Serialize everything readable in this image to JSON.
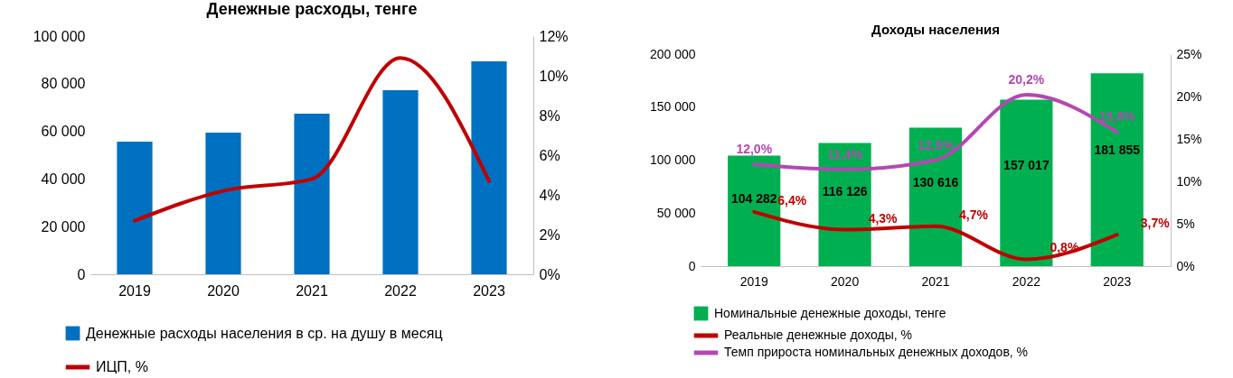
{
  "chart_data": [
    {
      "type": "bar",
      "title": "Денежные расходы, тенге",
      "categories": [
        "2019",
        "2020",
        "2021",
        "2022",
        "2023"
      ],
      "series": [
        {
          "name": "Денежные расходы населения в ср. на душу в месяц",
          "color": "#0070c0",
          "values": [
            55700,
            59500,
            67400,
            77300,
            89400
          ]
        },
        {
          "name": "ИЦП, %",
          "type": "line",
          "axis": "y2",
          "color": "#c00000",
          "values": [
            2.7,
            4.2,
            4.8,
            10.9,
            4.7
          ]
        }
      ],
      "ylim": [
        0,
        100000
      ],
      "yticks": [
        0,
        {
          "value": 20000,
          "label": "20 000"
        },
        {
          "value": 40000,
          "label": "40 000"
        },
        {
          "value": 60000,
          "label": "60 000"
        },
        {
          "value": 80000,
          "label": "80 000"
        },
        {
          "value": 100000,
          "label": "100 000"
        }
      ],
      "y2lim": [
        0,
        12
      ],
      "y2ticks": [
        {
          "value": 0,
          "label": "0%"
        },
        {
          "value": 2,
          "label": "2%"
        },
        {
          "value": 4,
          "label": "4%"
        },
        {
          "value": 6,
          "label": "6%"
        },
        {
          "value": 8,
          "label": "8%"
        },
        {
          "value": 10,
          "label": "10%"
        },
        {
          "value": 12,
          "label": "12%"
        }
      ],
      "legend": "bottom"
    },
    {
      "type": "bar",
      "title": "Доходы населения",
      "categories": [
        "2019",
        "2020",
        "2021",
        "2022",
        "2023"
      ],
      "series": [
        {
          "name": "Номинальные денежные доходы, тенге",
          "color": "#00b050",
          "values": [
            104282,
            116126,
            130616,
            157017,
            181855
          ],
          "value_labels": [
            "104 282",
            "116 126",
            "130 616",
            "157 017",
            "181 855"
          ]
        },
        {
          "name": "Реальные денежные доходы, %",
          "type": "line",
          "axis": "y2",
          "color": "#c00000",
          "values": [
            6.4,
            4.3,
            4.7,
            0.8,
            3.7
          ],
          "value_labels": [
            "6,4%",
            "4,3%",
            "4,7%",
            "0,8%",
            "3,7%"
          ]
        },
        {
          "name": "Темп прироста номинальных денежных доходов, %",
          "type": "line",
          "axis": "y2",
          "color": "#b348b3",
          "values": [
            12.0,
            11.4,
            12.5,
            20.2,
            15.8
          ],
          "value_labels": [
            "12,0%",
            "11,4%",
            "12,5%",
            "20,2%",
            "15,8%"
          ]
        }
      ],
      "ylim": [
        0,
        200000
      ],
      "yticks": [
        0,
        {
          "value": 50000,
          "label": "50 000"
        },
        {
          "value": 100000,
          "label": "100 000"
        },
        {
          "value": 150000,
          "label": "150 000"
        },
        {
          "value": 200000,
          "label": "200 000"
        }
      ],
      "y2lim": [
        0,
        25
      ],
      "y2ticks": [
        {
          "value": 0,
          "label": "0%"
        },
        {
          "value": 5,
          "label": "5%"
        },
        {
          "value": 10,
          "label": "10%"
        },
        {
          "value": 15,
          "label": "15%"
        },
        {
          "value": 20,
          "label": "20%"
        },
        {
          "value": 25,
          "label": "25%"
        }
      ],
      "legend": "bottom"
    }
  ]
}
